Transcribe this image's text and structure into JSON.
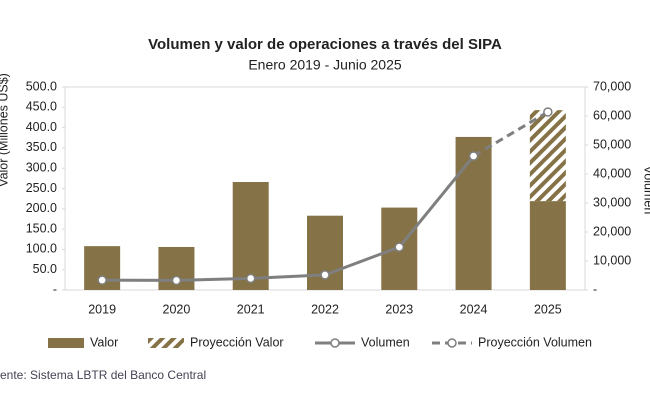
{
  "chart_data": {
    "type": "bar",
    "title": "Volumen y valor de operaciones a través del SIPA",
    "subtitle": "Enero 2019 - Junio 2025",
    "y_label": "Valor (Millones US$)",
    "y2_label": "Volumen",
    "source": "Fuente: Sistema LBTR del Banco Central",
    "categories": [
      "2019",
      "2020",
      "2021",
      "2022",
      "2023",
      "2024",
      "2025"
    ],
    "series": [
      {
        "name": "Valor",
        "type": "bar",
        "color": "#857347",
        "values": [
          108,
          106,
          266,
          183,
          203,
          377,
          219
        ]
      },
      {
        "name": "Proyección Valor",
        "type": "bar",
        "hatch": true,
        "color": "#857347",
        "values": [
          null,
          null,
          null,
          null,
          null,
          null,
          224
        ]
      },
      {
        "name": "Volumen",
        "type": "line",
        "axis": "y2",
        "color": "#7f7f7f",
        "values": [
          3400,
          3300,
          4000,
          5200,
          14800,
          46200,
          null
        ]
      },
      {
        "name": "Proyección Volumen",
        "type": "line",
        "axis": "y2",
        "dashed": true,
        "color": "#7f7f7f",
        "values": [
          null,
          null,
          null,
          null,
          null,
          46200,
          61400
        ]
      }
    ],
    "ylim": [
      0,
      500
    ],
    "yticks": [
      {
        "value": 0,
        "label": "-"
      },
      {
        "value": 50,
        "label": "50.0"
      },
      {
        "value": 100,
        "label": "100.0"
      },
      {
        "value": 150,
        "label": "150.0"
      },
      {
        "value": 200,
        "label": "200.0"
      },
      {
        "value": 250,
        "label": "250.0"
      },
      {
        "value": 300,
        "label": "300.0"
      },
      {
        "value": 350,
        "label": "350.0"
      },
      {
        "value": 400,
        "label": "400.0"
      },
      {
        "value": 450,
        "label": "450.0"
      },
      {
        "value": 500,
        "label": "500.0"
      }
    ],
    "y2lim": [
      0,
      70000
    ],
    "y2ticks": [
      {
        "value": 0,
        "label": "-"
      },
      {
        "value": 10000,
        "label": "10,000"
      },
      {
        "value": 20000,
        "label": "20,000"
      },
      {
        "value": 30000,
        "label": "30,000"
      },
      {
        "value": 40000,
        "label": "40,000"
      },
      {
        "value": 50000,
        "label": "50,000"
      },
      {
        "value": 60000,
        "label": "60,000"
      },
      {
        "value": 70000,
        "label": "70,000"
      }
    ]
  }
}
